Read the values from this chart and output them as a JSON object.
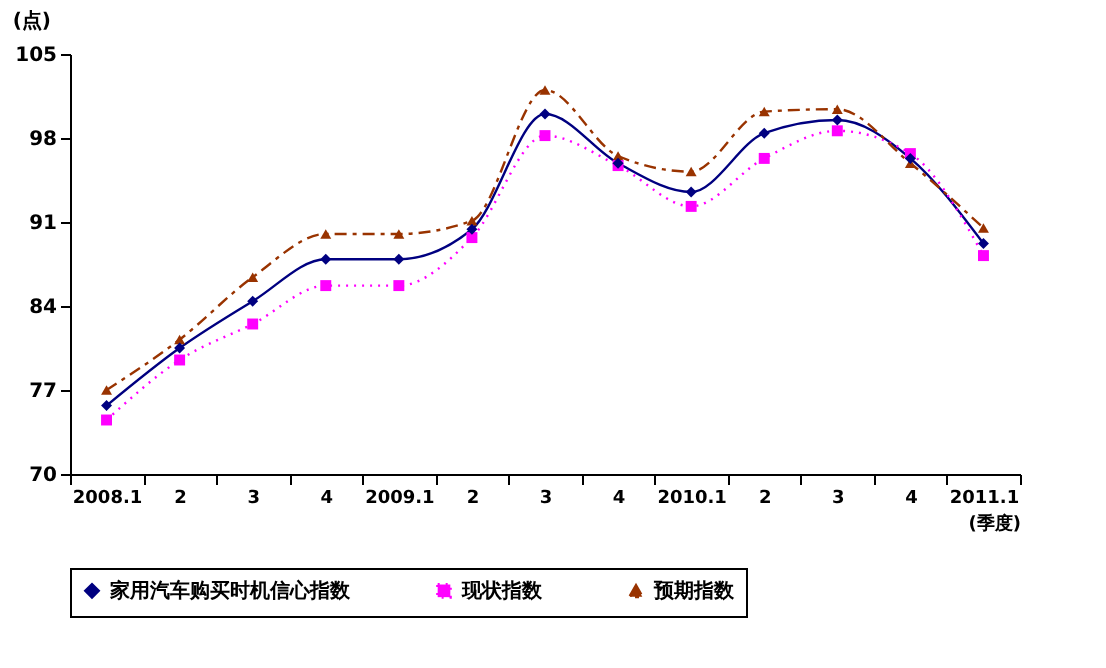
{
  "chart_data": {
    "type": "line",
    "ylabel": "(点)",
    "xlabel": "(季度)",
    "categories": [
      "2008.1",
      "2",
      "3",
      "4",
      "2009.1",
      "2",
      "3",
      "4",
      "2010.1",
      "2",
      "3",
      "4",
      "2011.1"
    ],
    "series": [
      {
        "name": "家用汽车购买时机信心指数",
        "color": "#000080",
        "marker": "diamond",
        "line_style": "solid",
        "values": [
          75.7,
          80.5,
          84.4,
          87.9,
          87.9,
          90.4,
          100.0,
          95.9,
          93.5,
          98.4,
          99.5,
          96.3,
          89.2
        ]
      },
      {
        "name": "现状指数",
        "color": "#ff00ff",
        "marker": "square",
        "line_style": "dotted",
        "values": [
          74.5,
          79.5,
          82.5,
          85.7,
          85.7,
          89.7,
          98.2,
          95.7,
          92.3,
          96.3,
          98.6,
          96.7,
          88.2
        ]
      },
      {
        "name": "预期指数",
        "color": "#993300",
        "marker": "triangle",
        "line_style": "dashed",
        "values": [
          77.0,
          81.2,
          86.4,
          90.0,
          90.0,
          91.1,
          102.0,
          96.5,
          95.2,
          100.2,
          100.4,
          95.9,
          90.5
        ]
      }
    ],
    "ylim": [
      70,
      105
    ],
    "yticks": [
      70,
      77,
      84,
      91,
      98,
      105
    ],
    "grid": false,
    "legend": "bottom"
  }
}
